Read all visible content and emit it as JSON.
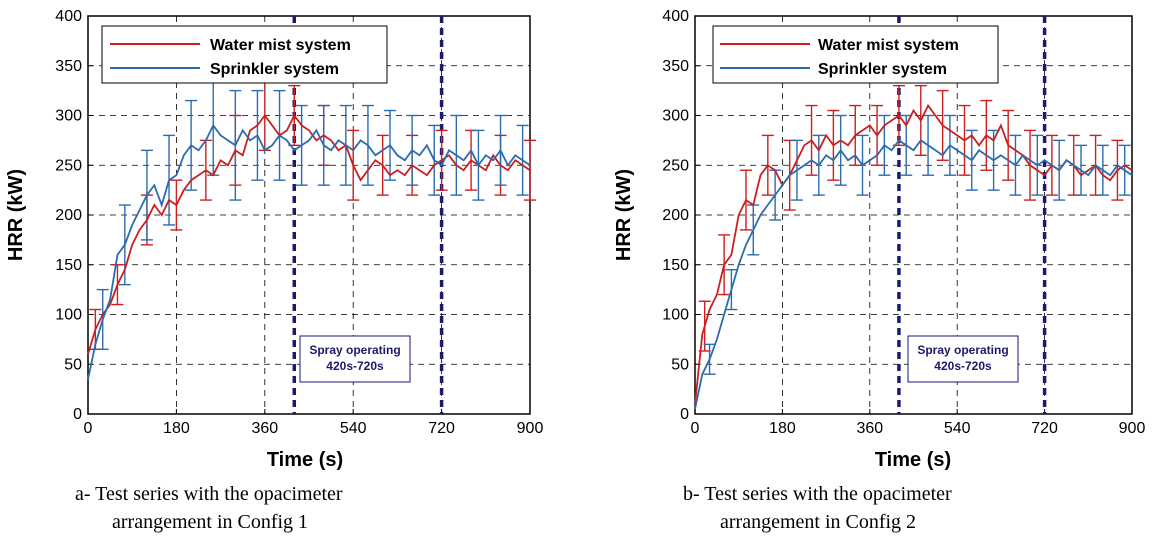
{
  "colors": {
    "water_mist": "#cc1f1f",
    "sprinkler": "#2b6cb0",
    "spray_marker": "#1a1a6e"
  },
  "chart_data": [
    {
      "type": "line",
      "caption_line1": "a- Test series with the opacimeter",
      "caption_line2": "arrangement in Config 1",
      "xlabel": "Time (s)",
      "ylabel": "HRR (kW)",
      "xlim": [
        0,
        900
      ],
      "ylim": [
        0,
        400
      ],
      "xticks": [
        "0",
        "180",
        "360",
        "540",
        "720",
        "900"
      ],
      "yticks": [
        "0",
        "50",
        "100",
        "150",
        "200",
        "250",
        "300",
        "350",
        "400"
      ],
      "grid": true,
      "legend_position": "top-left",
      "vlines": [
        420,
        720
      ],
      "annotation": {
        "line1": "Spray operating",
        "line2": "420s-720s"
      },
      "series": [
        {
          "name": "Water mist system",
          "x": [
            0,
            15,
            30,
            45,
            60,
            75,
            90,
            105,
            120,
            135,
            150,
            165,
            180,
            195,
            210,
            225,
            240,
            255,
            270,
            285,
            300,
            315,
            330,
            345,
            360,
            375,
            390,
            405,
            420,
            435,
            450,
            465,
            480,
            495,
            510,
            525,
            540,
            555,
            570,
            585,
            600,
            615,
            630,
            645,
            660,
            675,
            690,
            705,
            720,
            735,
            750,
            765,
            780,
            795,
            810,
            825,
            840,
            855,
            870,
            885,
            900
          ],
          "y": [
            60,
            85,
            100,
            110,
            130,
            145,
            170,
            185,
            195,
            210,
            200,
            215,
            210,
            225,
            235,
            240,
            245,
            240,
            255,
            250,
            265,
            260,
            285,
            290,
            300,
            290,
            280,
            285,
            300,
            290,
            285,
            275,
            280,
            275,
            265,
            270,
            250,
            235,
            245,
            255,
            250,
            240,
            245,
            240,
            250,
            245,
            240,
            250,
            255,
            260,
            250,
            245,
            255,
            250,
            245,
            260,
            250,
            245,
            255,
            250,
            245
          ],
          "error_bar_times": [
            15,
            60,
            120,
            180,
            240,
            300,
            360,
            420,
            480,
            540,
            600,
            660,
            720,
            780,
            840,
            900
          ],
          "error_bar_values": [
            20,
            20,
            25,
            25,
            30,
            35,
            35,
            30,
            30,
            35,
            30,
            30,
            30,
            30,
            30,
            30
          ]
        },
        {
          "name": "Sprinkler system",
          "x": [
            0,
            15,
            30,
            45,
            60,
            75,
            90,
            105,
            120,
            135,
            150,
            165,
            180,
            195,
            210,
            225,
            240,
            255,
            270,
            285,
            300,
            315,
            330,
            345,
            360,
            375,
            390,
            405,
            420,
            435,
            450,
            465,
            480,
            495,
            510,
            525,
            540,
            555,
            570,
            585,
            600,
            615,
            630,
            645,
            660,
            675,
            690,
            705,
            720,
            735,
            750,
            765,
            780,
            795,
            810,
            825,
            840,
            855,
            870,
            885,
            900
          ],
          "y": [
            35,
            70,
            95,
            115,
            160,
            170,
            190,
            205,
            220,
            230,
            210,
            235,
            240,
            260,
            270,
            265,
            275,
            290,
            280,
            275,
            270,
            285,
            275,
            280,
            265,
            270,
            280,
            275,
            265,
            270,
            275,
            285,
            270,
            265,
            275,
            270,
            265,
            275,
            270,
            260,
            265,
            270,
            260,
            255,
            265,
            260,
            270,
            255,
            250,
            265,
            260,
            255,
            265,
            250,
            260,
            255,
            265,
            250,
            260,
            255,
            250
          ],
          "error_bar_times": [
            30,
            75,
            120,
            165,
            210,
            255,
            300,
            345,
            390,
            435,
            480,
            525,
            570,
            615,
            660,
            705,
            750,
            795,
            840,
            885
          ],
          "error_bar_values": [
            30,
            40,
            45,
            45,
            45,
            50,
            55,
            45,
            45,
            40,
            40,
            40,
            40,
            35,
            35,
            35,
            40,
            35,
            35,
            35
          ]
        }
      ]
    },
    {
      "type": "line",
      "caption_line1": "b- Test series with the opacimeter",
      "caption_line2": "arrangement in Config 2",
      "xlabel": "Time (s)",
      "ylabel": "HRR (kW)",
      "xlim": [
        0,
        900
      ],
      "ylim": [
        0,
        400
      ],
      "xticks": [
        "0",
        "180",
        "360",
        "540",
        "720",
        "900"
      ],
      "yticks": [
        "0",
        "50",
        "100",
        "150",
        "200",
        "250",
        "300",
        "350",
        "400"
      ],
      "grid": true,
      "legend_position": "top-left",
      "vlines": [
        420,
        720
      ],
      "annotation": {
        "line1": "Spray operating",
        "line2": "420s-720s"
      },
      "series": [
        {
          "name": "Water mist system",
          "x": [
            0,
            15,
            30,
            45,
            60,
            75,
            90,
            105,
            120,
            135,
            150,
            165,
            180,
            195,
            210,
            225,
            240,
            255,
            270,
            285,
            300,
            315,
            330,
            345,
            360,
            375,
            390,
            405,
            420,
            435,
            450,
            465,
            480,
            495,
            510,
            525,
            540,
            555,
            570,
            585,
            600,
            615,
            630,
            645,
            660,
            675,
            690,
            705,
            720,
            735,
            750,
            765,
            780,
            795,
            810,
            825,
            840,
            855,
            870,
            885,
            900
          ],
          "y": [
            10,
            80,
            105,
            120,
            150,
            160,
            200,
            215,
            210,
            240,
            250,
            245,
            230,
            240,
            255,
            270,
            275,
            265,
            280,
            270,
            275,
            270,
            280,
            285,
            290,
            280,
            290,
            295,
            300,
            290,
            305,
            295,
            310,
            300,
            290,
            285,
            280,
            275,
            280,
            270,
            280,
            275,
            290,
            270,
            265,
            260,
            250,
            245,
            240,
            250,
            245,
            255,
            250,
            240,
            245,
            250,
            240,
            235,
            245,
            250,
            245
          ],
          "error_bar_times": [
            20,
            60,
            105,
            150,
            195,
            240,
            285,
            330,
            375,
            420,
            465,
            510,
            555,
            600,
            645,
            690,
            735,
            780,
            825,
            870
          ],
          "error_bar_values": [
            25,
            30,
            30,
            30,
            35,
            35,
            35,
            30,
            30,
            30,
            35,
            35,
            35,
            35,
            35,
            35,
            30,
            30,
            30,
            30
          ]
        },
        {
          "name": "Sprinkler system",
          "x": [
            0,
            15,
            30,
            45,
            60,
            75,
            90,
            105,
            120,
            135,
            150,
            165,
            180,
            195,
            210,
            225,
            240,
            255,
            270,
            285,
            300,
            315,
            330,
            345,
            360,
            375,
            390,
            405,
            420,
            435,
            450,
            465,
            480,
            495,
            510,
            525,
            540,
            555,
            570,
            585,
            600,
            615,
            630,
            645,
            660,
            675,
            690,
            705,
            720,
            735,
            750,
            765,
            780,
            795,
            810,
            825,
            840,
            855,
            870,
            885,
            900
          ],
          "y": [
            5,
            40,
            55,
            75,
            100,
            125,
            150,
            170,
            185,
            200,
            210,
            220,
            230,
            240,
            245,
            250,
            255,
            250,
            260,
            255,
            265,
            255,
            260,
            250,
            255,
            260,
            270,
            265,
            275,
            270,
            265,
            275,
            270,
            265,
            260,
            270,
            265,
            260,
            255,
            265,
            260,
            255,
            260,
            255,
            250,
            260,
            255,
            250,
            255,
            250,
            245,
            255,
            250,
            245,
            240,
            250,
            245,
            240,
            250,
            245,
            240
          ],
          "error_bar_times": [
            30,
            75,
            120,
            165,
            210,
            255,
            300,
            345,
            390,
            435,
            480,
            525,
            570,
            615,
            660,
            705,
            750,
            795,
            840,
            885
          ],
          "error_bar_values": [
            15,
            20,
            25,
            25,
            30,
            30,
            35,
            30,
            30,
            30,
            30,
            30,
            30,
            30,
            30,
            30,
            30,
            25,
            25,
            25
          ]
        }
      ]
    }
  ]
}
